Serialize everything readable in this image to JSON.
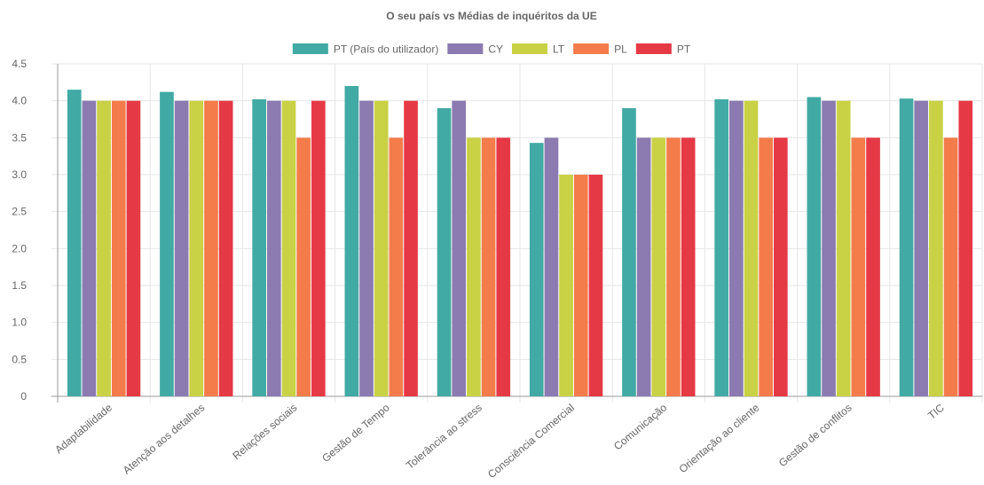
{
  "chart_data": {
    "type": "bar",
    "title": "O seu país vs Médias de inquéritos da UE",
    "xlabel": "",
    "ylabel": "",
    "ylim": [
      0,
      4.5
    ],
    "ytick_step": 0.5,
    "yticks": [
      "0",
      "0.5",
      "1.0",
      "1.5",
      "2.0",
      "2.5",
      "3.0",
      "3.5",
      "4.0",
      "4.5"
    ],
    "grid": true,
    "legend_position": "top",
    "categories": [
      "Adaptabilidade",
      "Atenção aos detalhes",
      "Relações sociais",
      "Gestão de Tempo",
      "Tolerância ao stress",
      "Consciência Comercial",
      "Comunicação",
      "Orientação ao cliente",
      "Gestão de conflitos",
      "TIC"
    ],
    "series": [
      {
        "name": "PT (País do utilizador)",
        "color": "#41aaa4",
        "values": [
          4.15,
          4.12,
          4.02,
          4.2,
          3.9,
          3.43,
          3.9,
          4.02,
          4.05,
          4.03
        ]
      },
      {
        "name": "CY",
        "color": "#8b7bb0",
        "values": [
          4.0,
          4.0,
          4.0,
          4.0,
          4.0,
          3.5,
          3.5,
          4.0,
          4.0,
          4.0
        ]
      },
      {
        "name": "LT",
        "color": "#c9d144",
        "values": [
          4.0,
          4.0,
          4.0,
          4.0,
          3.5,
          3.0,
          3.5,
          4.0,
          4.0,
          4.0
        ]
      },
      {
        "name": "PL",
        "color": "#f47c4a",
        "values": [
          4.0,
          4.0,
          3.5,
          3.5,
          3.5,
          3.0,
          3.5,
          3.5,
          3.5,
          3.5
        ]
      },
      {
        "name": "PT",
        "color": "#e63946",
        "values": [
          4.0,
          4.0,
          4.0,
          4.0,
          3.5,
          3.0,
          3.5,
          3.5,
          3.5,
          4.0
        ]
      }
    ]
  }
}
